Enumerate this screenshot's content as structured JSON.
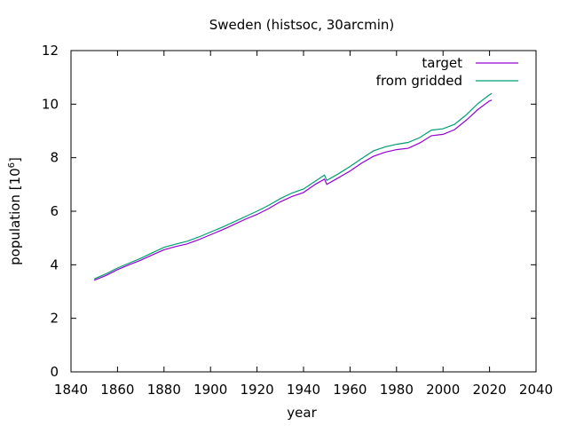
{
  "chart_data": {
    "type": "line",
    "title": "Sweden (histsoc, 30arcmin)",
    "xlabel": "year",
    "ylabel_main": "population [10",
    "ylabel_sup": "6",
    "ylabel_close": "]",
    "xlim": [
      1840,
      2040
    ],
    "ylim": [
      0,
      12
    ],
    "xticks": [
      1840,
      1860,
      1880,
      1900,
      1920,
      1940,
      1960,
      1980,
      2000,
      2020,
      2040
    ],
    "yticks": [
      0,
      2,
      4,
      6,
      8,
      10,
      12
    ],
    "grid": false,
    "legend_position": "top-right",
    "series": [
      {
        "name": "target",
        "color": "#9400d3",
        "x": [
          1850,
          1855,
          1860,
          1865,
          1870,
          1875,
          1880,
          1885,
          1890,
          1895,
          1900,
          1905,
          1910,
          1915,
          1920,
          1925,
          1930,
          1935,
          1940,
          1945,
          1949,
          1950,
          1955,
          1960,
          1965,
          1970,
          1975,
          1980,
          1985,
          1990,
          1995,
          2000,
          2005,
          2010,
          2015,
          2020,
          2021
        ],
        "y": [
          3.42,
          3.6,
          3.82,
          4.0,
          4.17,
          4.37,
          4.56,
          4.68,
          4.78,
          4.94,
          5.12,
          5.3,
          5.5,
          5.7,
          5.88,
          6.1,
          6.35,
          6.55,
          6.7,
          7.0,
          7.2,
          7.0,
          7.25,
          7.5,
          7.8,
          8.05,
          8.2,
          8.3,
          8.35,
          8.55,
          8.82,
          8.87,
          9.05,
          9.4,
          9.8,
          10.12,
          10.15
        ]
      },
      {
        "name": "from gridded",
        "color": "#009e73",
        "x": [
          1850,
          1855,
          1860,
          1865,
          1870,
          1875,
          1880,
          1885,
          1890,
          1895,
          1900,
          1905,
          1910,
          1915,
          1920,
          1925,
          1930,
          1935,
          1940,
          1945,
          1949,
          1950,
          1955,
          1960,
          1965,
          1970,
          1975,
          1980,
          1985,
          1990,
          1995,
          2000,
          2005,
          2010,
          2015,
          2020,
          2021
        ],
        "y": [
          3.47,
          3.66,
          3.88,
          4.06,
          4.24,
          4.45,
          4.65,
          4.77,
          4.88,
          5.04,
          5.22,
          5.4,
          5.6,
          5.8,
          6.0,
          6.22,
          6.47,
          6.68,
          6.83,
          7.12,
          7.35,
          7.15,
          7.4,
          7.67,
          7.97,
          8.25,
          8.4,
          8.5,
          8.57,
          8.75,
          9.03,
          9.08,
          9.25,
          9.6,
          10.02,
          10.35,
          10.4
        ]
      }
    ]
  }
}
